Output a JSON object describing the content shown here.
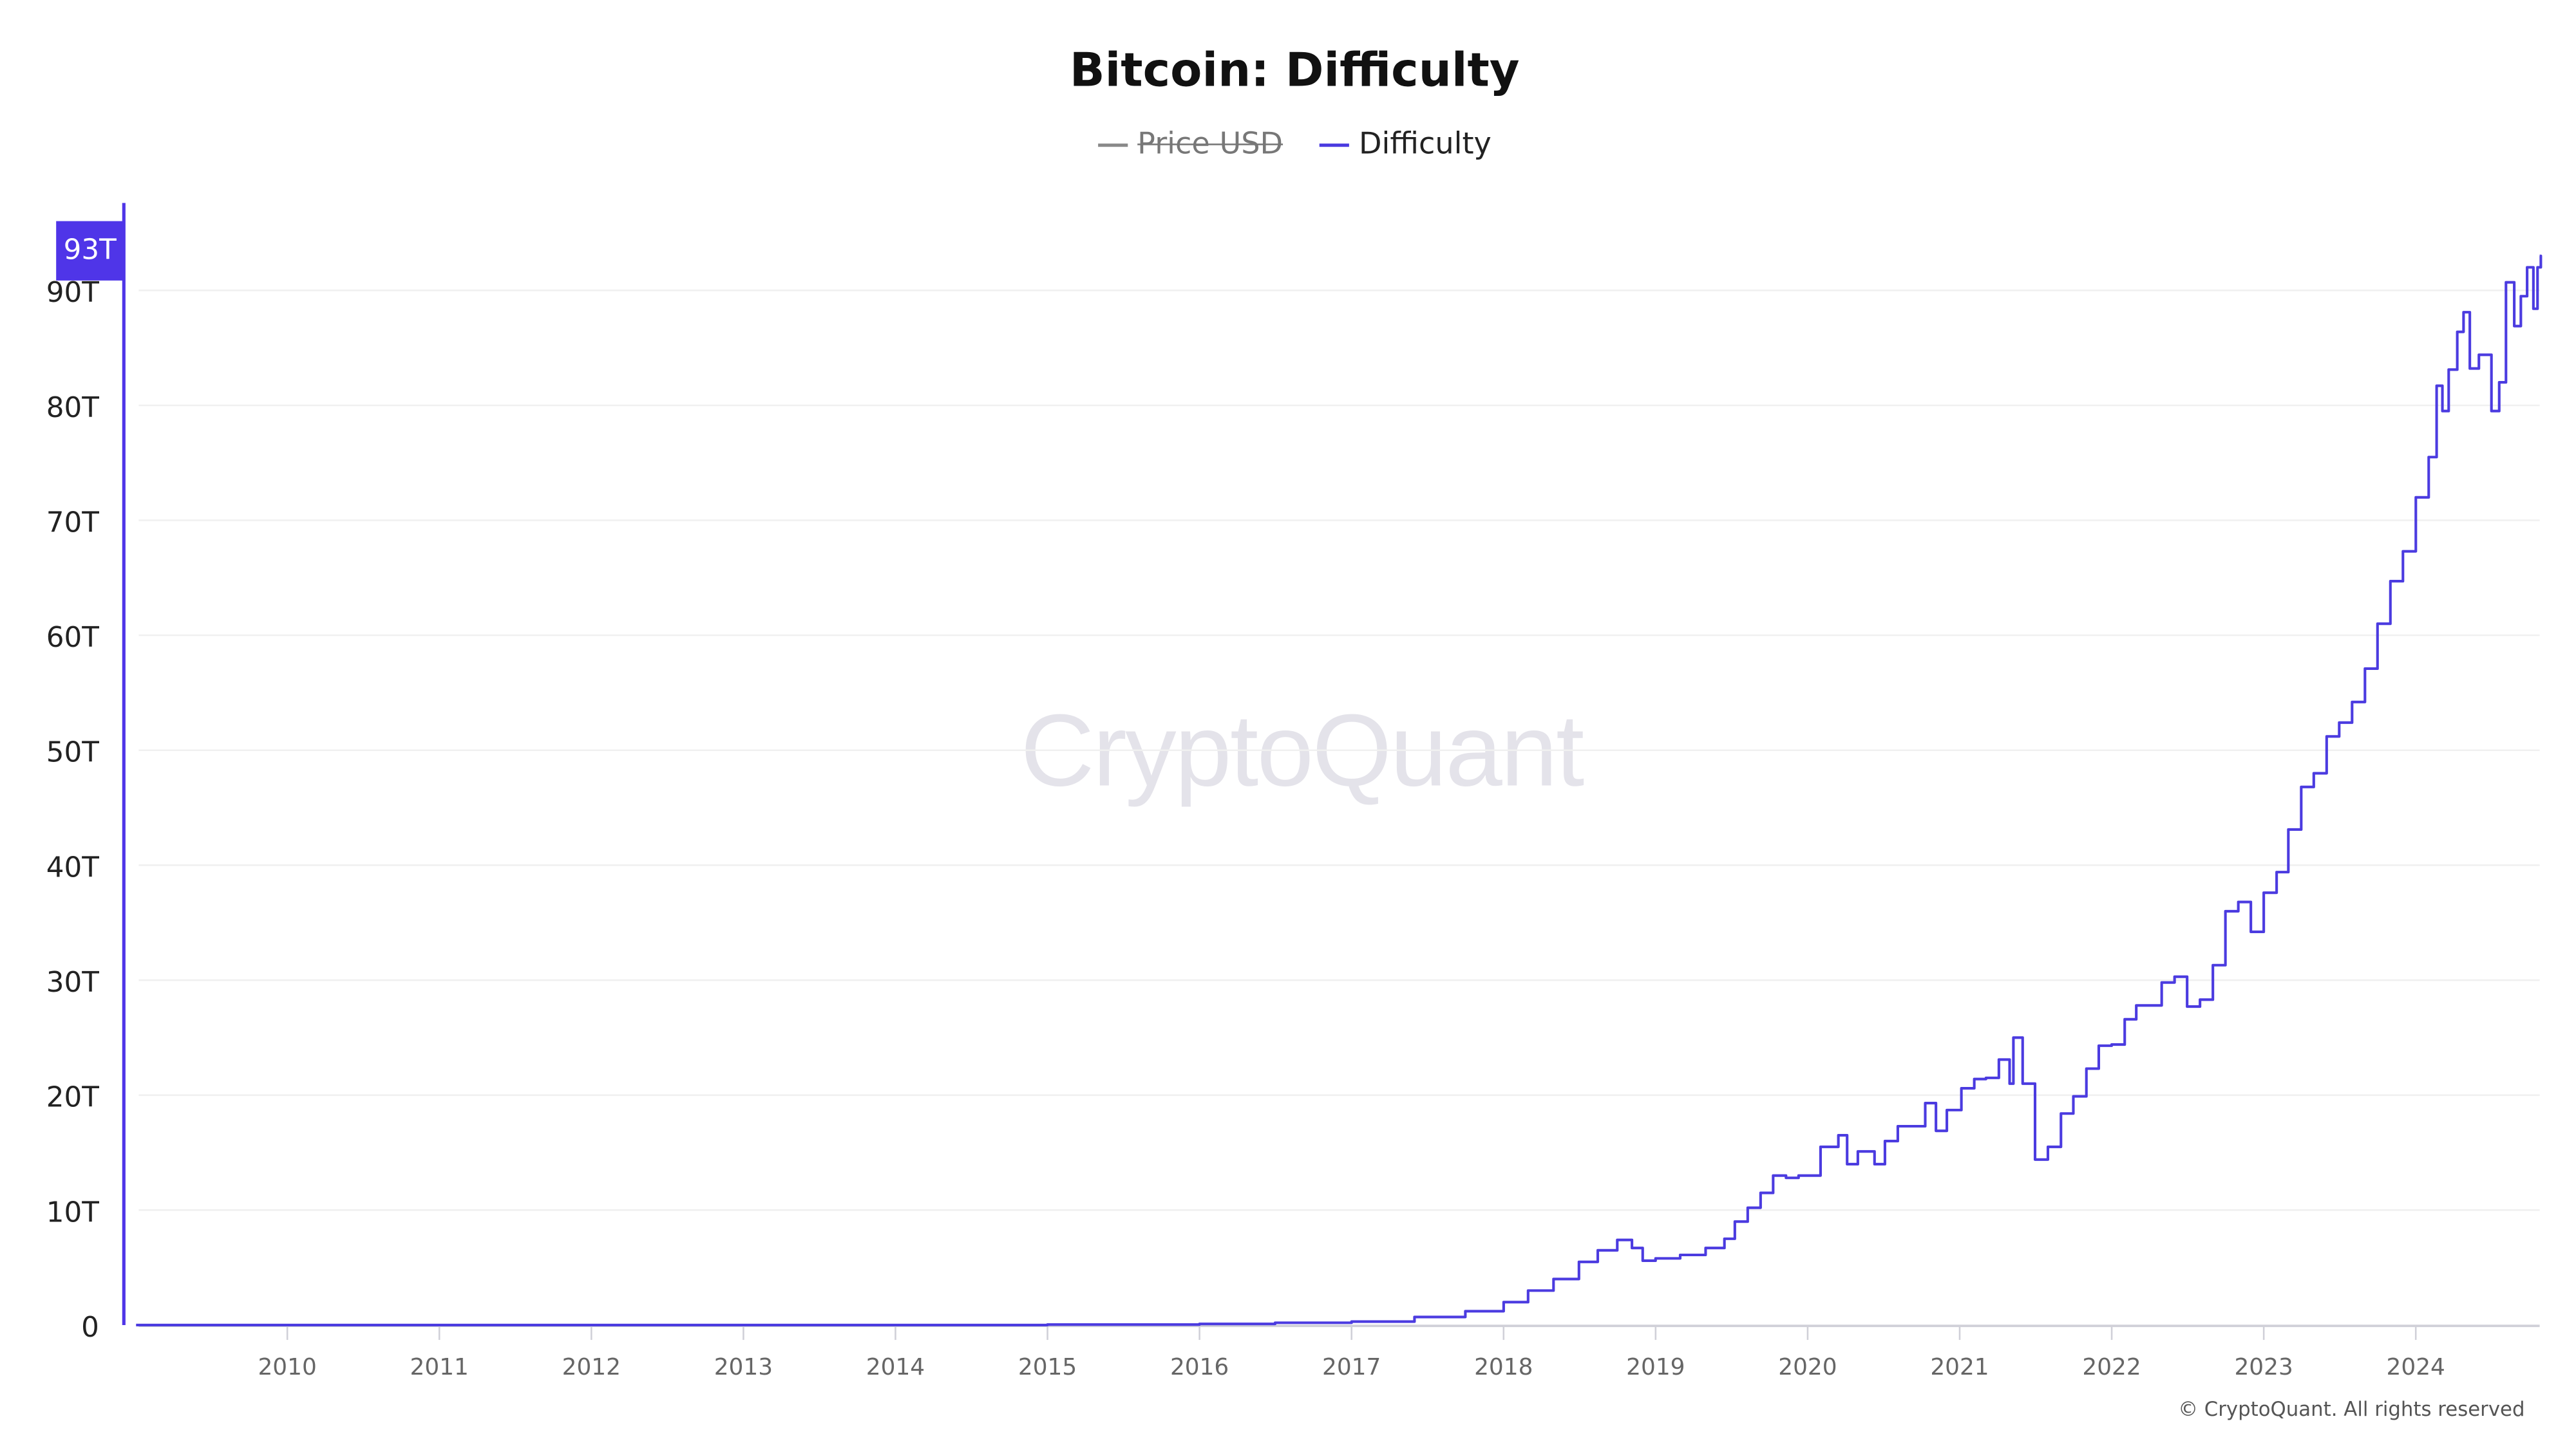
{
  "chart_data": {
    "type": "line",
    "title": "Bitcoin: Difficulty",
    "legend": [
      {
        "name": "Price USD",
        "color": "#8a8a8a",
        "hidden": true
      },
      {
        "name": "Difficulty",
        "color": "#4b3be0",
        "hidden": false
      }
    ],
    "legend_position": "top-center",
    "step": true,
    "grid": true,
    "xlim": [
      "2009-01-03",
      "2024-11-01"
    ],
    "ylim": [
      0,
      97
    ],
    "y_unit": "T",
    "x_ticks": [
      "2010",
      "2011",
      "2012",
      "2013",
      "2014",
      "2015",
      "2016",
      "2017",
      "2018",
      "2019",
      "2020",
      "2021",
      "2022",
      "2023",
      "2024"
    ],
    "y_ticks": [
      "0",
      "10T",
      "20T",
      "30T",
      "40T",
      "50T",
      "60T",
      "70T",
      "80T",
      "90T"
    ],
    "last_value_label": "93T",
    "series": [
      {
        "name": "Difficulty",
        "color": "#4b3be0",
        "points": [
          [
            "2009-01-03",
            0
          ],
          [
            "2014-01-01",
            0.002
          ],
          [
            "2015-01-01",
            0.04
          ],
          [
            "2016-01-01",
            0.1
          ],
          [
            "2016-07-01",
            0.2
          ],
          [
            "2017-01-01",
            0.3
          ],
          [
            "2017-06-01",
            0.7
          ],
          [
            "2017-10-01",
            1.2
          ],
          [
            "2018-01-01",
            2.0
          ],
          [
            "2018-03-01",
            3.0
          ],
          [
            "2018-05-01",
            4.0
          ],
          [
            "2018-07-01",
            5.5
          ],
          [
            "2018-08-15",
            6.5
          ],
          [
            "2018-10-01",
            7.4
          ],
          [
            "2018-11-05",
            6.7
          ],
          [
            "2018-12-01",
            5.6
          ],
          [
            "2019-01-01",
            5.8
          ],
          [
            "2019-03-01",
            6.1
          ],
          [
            "2019-05-01",
            6.7
          ],
          [
            "2019-06-15",
            7.5
          ],
          [
            "2019-07-10",
            9.0
          ],
          [
            "2019-08-10",
            10.2
          ],
          [
            "2019-09-10",
            11.5
          ],
          [
            "2019-10-10",
            13.0
          ],
          [
            "2019-11-10",
            12.8
          ],
          [
            "2019-12-10",
            13.0
          ],
          [
            "2020-02-01",
            15.5
          ],
          [
            "2020-03-15",
            16.5
          ],
          [
            "2020-04-05",
            14.0
          ],
          [
            "2020-05-01",
            15.1
          ],
          [
            "2020-06-10",
            14.0
          ],
          [
            "2020-07-05",
            16.0
          ],
          [
            "2020-08-05",
            17.3
          ],
          [
            "2020-09-15",
            17.3
          ],
          [
            "2020-10-10",
            19.3
          ],
          [
            "2020-11-05",
            16.9
          ],
          [
            "2020-12-01",
            18.7
          ],
          [
            "2021-01-05",
            20.6
          ],
          [
            "2021-02-05",
            21.4
          ],
          [
            "2021-03-05",
            21.5
          ],
          [
            "2021-04-05",
            23.1
          ],
          [
            "2021-05-01",
            21.0
          ],
          [
            "2021-05-10",
            25.0
          ],
          [
            "2021-06-01",
            21.0
          ],
          [
            "2021-07-01",
            14.4
          ],
          [
            "2021-08-01",
            15.5
          ],
          [
            "2021-09-01",
            18.4
          ],
          [
            "2021-10-01",
            19.9
          ],
          [
            "2021-11-01",
            22.3
          ],
          [
            "2021-12-01",
            24.3
          ],
          [
            "2022-01-01",
            24.4
          ],
          [
            "2022-02-01",
            26.6
          ],
          [
            "2022-03-01",
            27.8
          ],
          [
            "2022-05-01",
            29.8
          ],
          [
            "2022-06-01",
            30.3
          ],
          [
            "2022-07-01",
            27.7
          ],
          [
            "2022-08-01",
            28.3
          ],
          [
            "2022-09-01",
            31.3
          ],
          [
            "2022-10-01",
            36.0
          ],
          [
            "2022-11-01",
            36.8
          ],
          [
            "2022-12-01",
            34.2
          ],
          [
            "2023-01-01",
            37.6
          ],
          [
            "2023-02-01",
            39.4
          ],
          [
            "2023-03-01",
            43.1
          ],
          [
            "2023-04-01",
            46.8
          ],
          [
            "2023-05-01",
            48.0
          ],
          [
            "2023-06-01",
            51.2
          ],
          [
            "2023-07-01",
            52.4
          ],
          [
            "2023-08-01",
            54.2
          ],
          [
            "2023-09-01",
            57.1
          ],
          [
            "2023-10-01",
            61.0
          ],
          [
            "2023-11-01",
            64.7
          ],
          [
            "2023-12-01",
            67.3
          ],
          [
            "2024-01-01",
            72.0
          ],
          [
            "2024-02-01",
            75.5
          ],
          [
            "2024-02-20",
            81.7
          ],
          [
            "2024-03-05",
            79.5
          ],
          [
            "2024-03-20",
            83.1
          ],
          [
            "2024-04-10",
            86.4
          ],
          [
            "2024-04-25",
            88.1
          ],
          [
            "2024-05-10",
            83.2
          ],
          [
            "2024-06-01",
            84.4
          ],
          [
            "2024-07-01",
            79.5
          ],
          [
            "2024-07-20",
            82.0
          ],
          [
            "2024-08-05",
            90.7
          ],
          [
            "2024-08-25",
            86.9
          ],
          [
            "2024-09-10",
            89.5
          ],
          [
            "2024-09-25",
            92.0
          ],
          [
            "2024-10-10",
            88.4
          ],
          [
            "2024-10-20",
            92.0
          ],
          [
            "2024-10-28",
            93.0
          ]
        ]
      }
    ]
  },
  "watermark": "CryptoQuant",
  "copyright": "© CryptoQuant. All rights reserved"
}
